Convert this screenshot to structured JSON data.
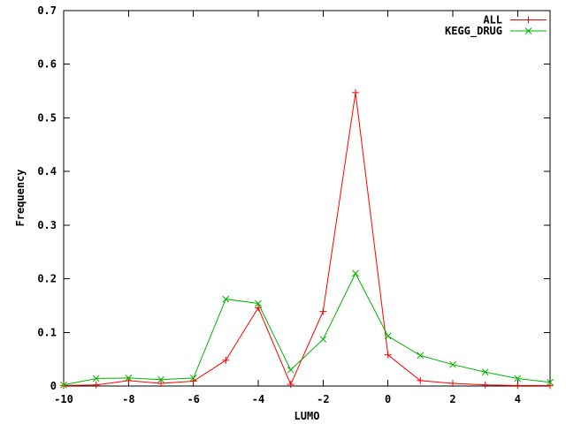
{
  "window": {
    "background": "#ffffff",
    "border_color": "#000000",
    "text_color": "#000000"
  },
  "chart_data": {
    "type": "line",
    "title": "",
    "xlabel": "LUMO",
    "ylabel": "Frequency",
    "xlim": [
      -10,
      5
    ],
    "ylim": [
      0,
      0.7
    ],
    "grid": false,
    "legend_position": "top-right-inside",
    "x_ticks": [
      {
        "v": -10,
        "label": "-10"
      },
      {
        "v": -8,
        "label": "-8"
      },
      {
        "v": -6,
        "label": "-6"
      },
      {
        "v": -4,
        "label": "-4"
      },
      {
        "v": -2,
        "label": "-2"
      },
      {
        "v": 0,
        "label": "0"
      },
      {
        "v": 2,
        "label": "2"
      },
      {
        "v": 4,
        "label": "4"
      }
    ],
    "y_ticks": [
      {
        "v": 0.0,
        "label": "0"
      },
      {
        "v": 0.1,
        "label": "0.1"
      },
      {
        "v": 0.2,
        "label": "0.2"
      },
      {
        "v": 0.3,
        "label": "0.3"
      },
      {
        "v": 0.4,
        "label": "0.4"
      },
      {
        "v": 0.5,
        "label": "0.5"
      },
      {
        "v": 0.6,
        "label": "0.6"
      },
      {
        "v": 0.7,
        "label": "0.7"
      }
    ],
    "x": [
      -10,
      -9,
      -8,
      -7,
      -6,
      -5,
      -4,
      -3,
      -2,
      -1,
      0,
      1,
      2,
      3,
      4,
      5
    ],
    "series": [
      {
        "name": "ALL",
        "color": "#ff0000",
        "marker": "plus",
        "values": [
          0.001,
          0.002,
          0.01,
          0.005,
          0.009,
          0.048,
          0.146,
          0.003,
          0.139,
          0.547,
          0.058,
          0.01,
          0.005,
          0.002,
          0.001,
          0.001
        ]
      },
      {
        "name": "KEGG_DRUG",
        "color": "#00b400",
        "marker": "cross",
        "values": [
          0.002,
          0.014,
          0.015,
          0.012,
          0.015,
          0.162,
          0.154,
          0.03,
          0.087,
          0.21,
          0.093,
          0.057,
          0.04,
          0.026,
          0.014,
          0.007
        ]
      }
    ]
  }
}
